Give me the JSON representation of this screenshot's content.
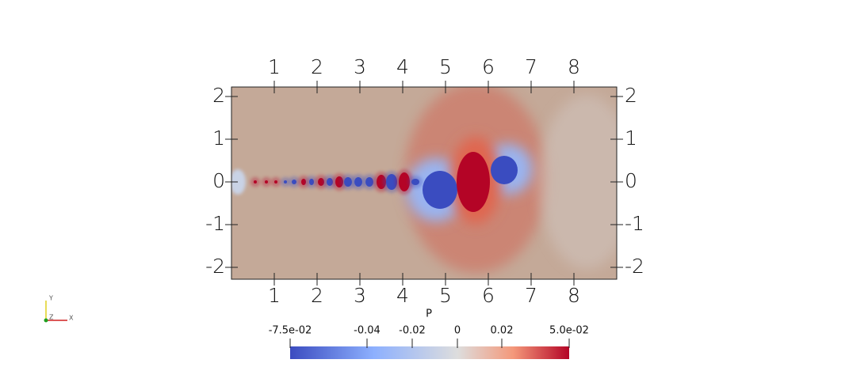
{
  "axes": {
    "x_ticks": [
      "1",
      "2",
      "3",
      "4",
      "5",
      "6",
      "7",
      "8"
    ],
    "y_ticks": [
      "2",
      "1",
      "0",
      "-1",
      "-2"
    ]
  },
  "colorbar": {
    "title": "P",
    "labels": [
      "-7.5e-02",
      "-0.04",
      "-0.02",
      "0",
      "0.02",
      "5.0e-02"
    ]
  },
  "orientation_axes": {
    "x": "X",
    "y": "Y",
    "z": "Z"
  }
}
